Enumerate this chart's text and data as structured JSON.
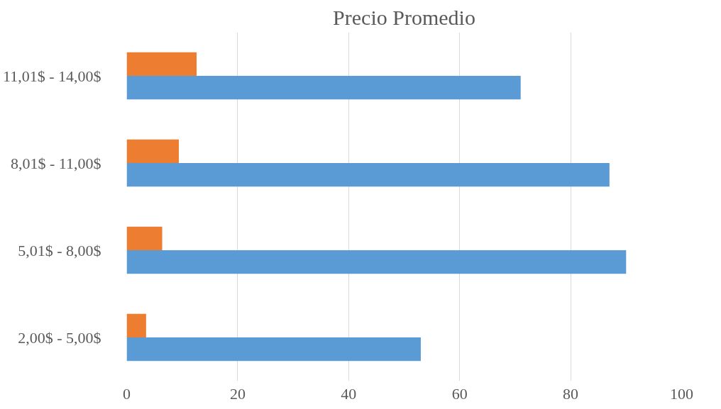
{
  "chart_data": {
    "type": "bar",
    "orientation": "horizontal",
    "title": "Precio Promedio",
    "categories": [
      "11,01$ - 14,00$",
      "8,01$ - 11,00$",
      "5,01$ - 8,00$",
      "2,00$ - 5,00$"
    ],
    "series": [
      {
        "color": "#5b9bd5",
        "values": [
          71,
          87,
          90,
          53
        ]
      },
      {
        "color": "#ed7d31",
        "values": [
          12.6,
          9.4,
          6.4,
          3.5
        ]
      }
    ],
    "xlim": [
      0,
      100
    ],
    "xticks": [
      0,
      20,
      40,
      60,
      80,
      100
    ],
    "grid": "x"
  }
}
